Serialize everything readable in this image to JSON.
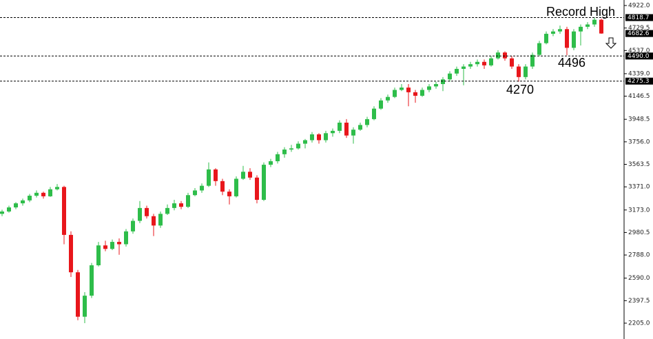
{
  "chart_data": {
    "type": "candlestick",
    "up_color": "#2ebd4a",
    "down_color": "#e8161b",
    "ylim": [
      2205,
      4922
    ],
    "yticks": [
      {
        "value": 4922,
        "label": "4922.0"
      },
      4729.5,
      {
        "value": 4537,
        "label": "4537.0"
      },
      {
        "value": 4339,
        "label": "4339.0"
      },
      4146.5,
      3948.5,
      {
        "value": 3756,
        "label": "3756.0"
      },
      3563.5,
      {
        "value": 3371,
        "label": "3371.0"
      },
      {
        "value": 3173,
        "label": "3173.0"
      },
      2980.5,
      {
        "value": 2788,
        "label": "2788.0"
      },
      {
        "value": 2590,
        "label": "2590.0"
      },
      2397.5,
      {
        "value": 2205,
        "label": "2205.0"
      }
    ],
    "levels": [
      4818.7,
      {
        "value": 4490,
        "label": "4490.0"
      },
      4275.3
    ],
    "last_price": 4682.6,
    "annotations": [
      "Record High",
      "4496",
      "4270"
    ],
    "open": [
      3140,
      3160,
      3195,
      3230,
      3255,
      3295,
      3320,
      3290,
      3350,
      3370,
      2960,
      2640,
      2260,
      2440,
      2700,
      2870,
      2840,
      2900,
      2880,
      2990,
      3080,
      3190,
      3120,
      3040,
      3140,
      3190,
      3230,
      3200,
      3300,
      3340,
      3380,
      3520,
      3420,
      3330,
      3290,
      3440,
      3500,
      3450,
      3260,
      3560,
      3590,
      3650,
      3690,
      3700,
      3740,
      3770,
      3820,
      3770,
      3830,
      3850,
      3920,
      3810,
      3860,
      3900,
      3950,
      4040,
      4110,
      4140,
      4200,
      4220,
      4180,
      4150,
      4200,
      4230,
      4250,
      4290,
      4340,
      4380,
      4400,
      4420,
      4440,
      4410,
      4470,
      4520,
      4470,
      4400,
      4310,
      4400,
      4500,
      4600,
      4680,
      4700,
      4720,
      4560,
      4700,
      4740,
      4760,
      4800
    ],
    "high": [
      3175,
      3210,
      3240,
      3270,
      3310,
      3340,
      3330,
      3370,
      3395,
      3380,
      2990,
      2660,
      2470,
      2720,
      2900,
      2910,
      2920,
      2930,
      3010,
      3100,
      3250,
      3210,
      3140,
      3160,
      3220,
      3260,
      3250,
      3320,
      3360,
      3400,
      3580,
      3530,
      3440,
      3350,
      3460,
      3550,
      3530,
      3470,
      3580,
      3610,
      3670,
      3710,
      3730,
      3760,
      3780,
      3840,
      3830,
      3850,
      3870,
      3940,
      3950,
      3880,
      3920,
      3970,
      4060,
      4130,
      4160,
      4220,
      4250,
      4250,
      4200,
      4220,
      4250,
      4270,
      4310,
      4360,
      4400,
      4420,
      4440,
      4460,
      4460,
      4490,
      4540,
      4530,
      4490,
      4420,
      4420,
      4520,
      4620,
      4700,
      4720,
      4750,
      4740,
      4720,
      4760,
      4780,
      4818.7,
      4810
    ],
    "low": [
      3120,
      3150,
      3180,
      3210,
      3240,
      3280,
      3270,
      3285,
      3340,
      2880,
      2600,
      2230,
      2205,
      2420,
      2690,
      2820,
      2830,
      2790,
      2860,
      2970,
      3060,
      3100,
      2950,
      3020,
      3130,
      3170,
      3180,
      3190,
      3290,
      3320,
      3370,
      3380,
      3300,
      3220,
      3280,
      3430,
      3430,
      3230,
      3250,
      3540,
      3570,
      3620,
      3670,
      3690,
      3700,
      3750,
      3740,
      3750,
      3800,
      3830,
      3790,
      3740,
      3850,
      3880,
      3940,
      4030,
      4090,
      4130,
      4190,
      4060,
      4090,
      4140,
      4180,
      4210,
      4190,
      4270,
      4320,
      4240,
      4380,
      4400,
      4380,
      4400,
      4460,
      4450,
      4380,
      4270,
      4290,
      4380,
      4490,
      4590,
      4660,
      4680,
      4496,
      4540,
      4580,
      4720,
      4740,
      4680
    ],
    "close": [
      3160,
      3195,
      3230,
      3255,
      3295,
      3320,
      3290,
      3350,
      3370,
      2960,
      2640,
      2260,
      2440,
      2700,
      2870,
      2840,
      2900,
      2880,
      2990,
      3080,
      3190,
      3120,
      3040,
      3140,
      3190,
      3230,
      3200,
      3300,
      3340,
      3380,
      3520,
      3420,
      3330,
      3290,
      3440,
      3500,
      3450,
      3260,
      3560,
      3590,
      3650,
      3690,
      3700,
      3740,
      3770,
      3820,
      3770,
      3830,
      3850,
      3920,
      3810,
      3860,
      3900,
      3950,
      4040,
      4110,
      4140,
      4200,
      4220,
      4180,
      4150,
      4200,
      4230,
      4250,
      4290,
      4340,
      4380,
      4400,
      4420,
      4440,
      4410,
      4470,
      4520,
      4470,
      4400,
      4310,
      4400,
      4500,
      4600,
      4680,
      4700,
      4720,
      4560,
      4700,
      4740,
      4760,
      4800,
      4682.6
    ]
  }
}
